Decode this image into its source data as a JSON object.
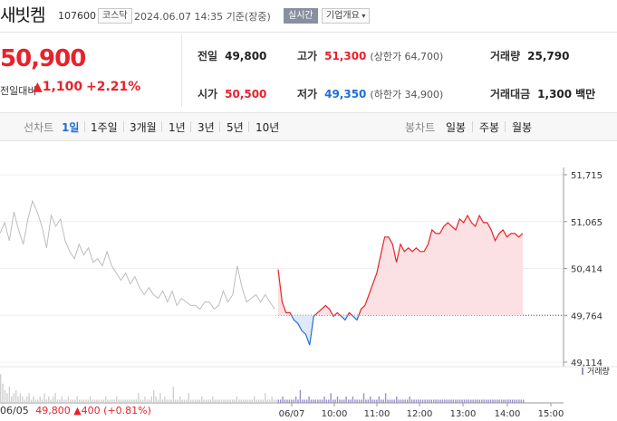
{
  "header": {
    "name": "새빗켐",
    "code": "107600",
    "market": "코스닥",
    "datetime": "2024.06.07 14:35",
    "basis": "기준(장중)",
    "realtime_label": "실시간",
    "company_info_label": "기업개요"
  },
  "price": {
    "current": "50,900",
    "change_label": "전일대비",
    "change": "1,100",
    "change_pct": "+2.21%"
  },
  "stats": {
    "prev_close_label": "전일",
    "prev_close": "49,800",
    "high_label": "고가",
    "high": "51,300",
    "upper_limit": "(상한가 64,700)",
    "volume_label": "거래량",
    "volume": "25,790",
    "open_label": "시가",
    "open": "50,500",
    "low_label": "저가",
    "low": "49,350",
    "lower_limit": "(하한가 34,900)",
    "amount_label": "거래대금",
    "amount": "1,300",
    "amount_unit": "백만"
  },
  "tabs": {
    "line_chart_label": "선차트",
    "periods": [
      "1일",
      "1주일",
      "3개월",
      "1년",
      "3년",
      "5년",
      "10년"
    ],
    "active_period": "1일",
    "candle_chart_label": "봉차트",
    "candle_periods": [
      "일봉",
      "주봉",
      "월봉"
    ]
  },
  "colors": {
    "up": "#e8222b",
    "down": "#1f6fd1",
    "prev_day_line": "#bdbdbd",
    "volume": "#9b8fc8"
  },
  "volume_legend": "거래량",
  "footer": {
    "date": "06/05",
    "price": "49,800",
    "change": "400",
    "pct": "(+0.81%)"
  },
  "chart_data": {
    "type": "line",
    "baseline": 49764,
    "ylim": [
      49114,
      51715
    ],
    "yticks": [
      "51,715",
      "51,065",
      "50,414",
      "49,764",
      "49,114"
    ],
    "x_tick_labels": [
      "06/07",
      "10:00",
      "11:00",
      "12:00",
      "13:00",
      "14:00",
      "15:00"
    ],
    "prev_day_series": [
      50900,
      51050,
      50800,
      51200,
      50950,
      50750,
      51100,
      51350,
      51200,
      51000,
      50700,
      51150,
      51000,
      51100,
      50800,
      50650,
      50550,
      50750,
      50600,
      50700,
      50500,
      50550,
      50450,
      50650,
      50450,
      50350,
      50250,
      50350,
      50200,
      50300,
      50150,
      50050,
      50150,
      50050,
      50000,
      50100,
      49950,
      50100,
      49900,
      50000,
      49950,
      49900,
      49900,
      49850,
      49950,
      49950,
      49850,
      49900,
      50100,
      49950,
      50050,
      50450,
      50150,
      49950,
      50000,
      50050,
      49950,
      50050,
      49950,
      49850
    ],
    "today_series": [
      50400,
      49950,
      49800,
      49800,
      49700,
      49650,
      49550,
      49500,
      49350,
      49750,
      49800,
      49850,
      49900,
      49850,
      49750,
      49800,
      49750,
      49700,
      49800,
      49750,
      49700,
      49850,
      49900,
      50050,
      50200,
      50350,
      50600,
      50850,
      50850,
      50750,
      50500,
      50750,
      50650,
      50700,
      50650,
      50700,
      50650,
      50650,
      50750,
      50950,
      50900,
      50900,
      51000,
      51050,
      51000,
      50950,
      51100,
      51050,
      51150,
      51050,
      51000,
      51150,
      51050,
      51050,
      50950,
      50800,
      50900,
      50950,
      50850,
      50900,
      50900,
      50850,
      50900
    ],
    "volume_series": [
      9,
      6,
      4,
      3,
      5,
      2,
      3,
      4,
      2,
      3,
      2,
      1,
      2,
      3,
      1,
      2,
      1,
      1,
      2,
      1,
      3,
      1,
      2,
      1,
      2,
      3,
      1,
      1,
      2,
      1,
      1,
      2,
      1,
      1,
      1,
      2,
      1,
      1,
      1,
      1,
      1,
      2,
      1,
      1,
      1,
      1,
      1,
      1,
      2,
      1,
      1,
      1,
      1,
      2,
      1,
      1,
      1,
      1,
      1,
      1,
      1,
      1,
      1,
      3,
      1,
      1,
      2,
      1,
      1,
      2,
      4,
      2,
      1,
      3,
      1,
      2,
      1,
      1,
      1,
      5,
      1,
      1,
      2,
      1,
      1,
      1,
      3,
      1,
      1,
      1,
      1,
      1,
      2,
      1,
      1,
      1,
      1,
      2,
      1,
      1,
      1,
      1,
      1,
      1,
      1,
      1,
      1,
      1,
      2,
      1,
      1,
      1,
      1,
      1,
      1,
      1,
      2,
      1,
      1,
      1,
      1,
      3,
      1,
      1,
      2,
      1,
      1,
      1,
      1,
      2,
      1,
      1,
      1,
      1,
      1,
      2,
      1,
      4,
      1,
      1,
      1,
      2,
      1,
      1,
      1,
      1,
      1,
      1,
      2,
      1,
      1,
      3,
      1,
      1,
      2,
      1,
      1,
      1,
      2,
      1,
      1,
      2,
      1,
      1,
      1,
      1,
      3,
      1,
      1,
      2,
      1,
      1,
      1,
      2,
      1,
      1,
      3,
      1,
      1,
      1,
      1,
      2,
      1,
      1,
      1,
      1,
      1,
      2,
      1,
      1,
      1,
      1,
      1,
      1,
      1,
      1,
      1,
      1,
      1,
      1,
      1,
      1,
      1,
      1,
      1,
      1,
      1,
      1,
      1,
      1,
      1,
      1,
      1,
      1,
      1,
      1,
      1,
      1,
      1,
      1,
      1,
      1,
      1,
      1,
      1,
      1,
      1,
      1,
      1,
      1,
      1,
      1,
      1,
      1,
      1,
      1,
      1,
      1,
      1,
      1
    ]
  }
}
